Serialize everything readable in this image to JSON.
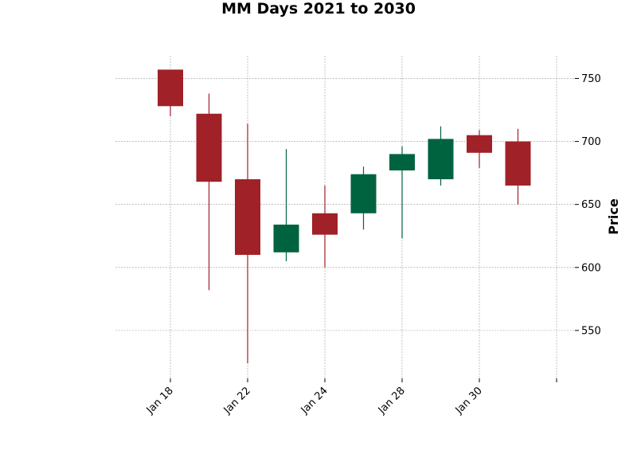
{
  "chart_data": {
    "type": "candlestick",
    "title": "MM Days 2021 to 2030",
    "xlabel": "",
    "ylabel": "Price",
    "ylim": [
      512,
      768
    ],
    "y_ticks": [
      550,
      600,
      650,
      700,
      750
    ],
    "x_tick_labels": [
      "Jan 18",
      "Jan 22",
      "Jan 24",
      "Jan 28",
      "Jan 30",
      ""
    ],
    "grid": true,
    "colors": {
      "up": "#006340",
      "down": "#a02128",
      "grid": "#9a9a9a"
    },
    "candles": [
      {
        "open": 757,
        "high": 757,
        "low": 720,
        "close": 728
      },
      {
        "open": 722,
        "high": 738,
        "low": 582,
        "close": 668
      },
      {
        "open": 670,
        "high": 714,
        "low": 524,
        "close": 610
      },
      {
        "open": 612,
        "high": 694,
        "low": 605,
        "close": 634
      },
      {
        "open": 643,
        "high": 665,
        "low": 600,
        "close": 626
      },
      {
        "open": 643,
        "high": 680,
        "low": 630,
        "close": 674
      },
      {
        "open": 677,
        "high": 696,
        "low": 623,
        "close": 690
      },
      {
        "open": 670,
        "high": 712,
        "low": 665,
        "close": 702
      },
      {
        "open": 705,
        "high": 709,
        "low": 679,
        "close": 691
      },
      {
        "open": 700,
        "high": 710,
        "low": 650,
        "close": 665
      }
    ]
  }
}
